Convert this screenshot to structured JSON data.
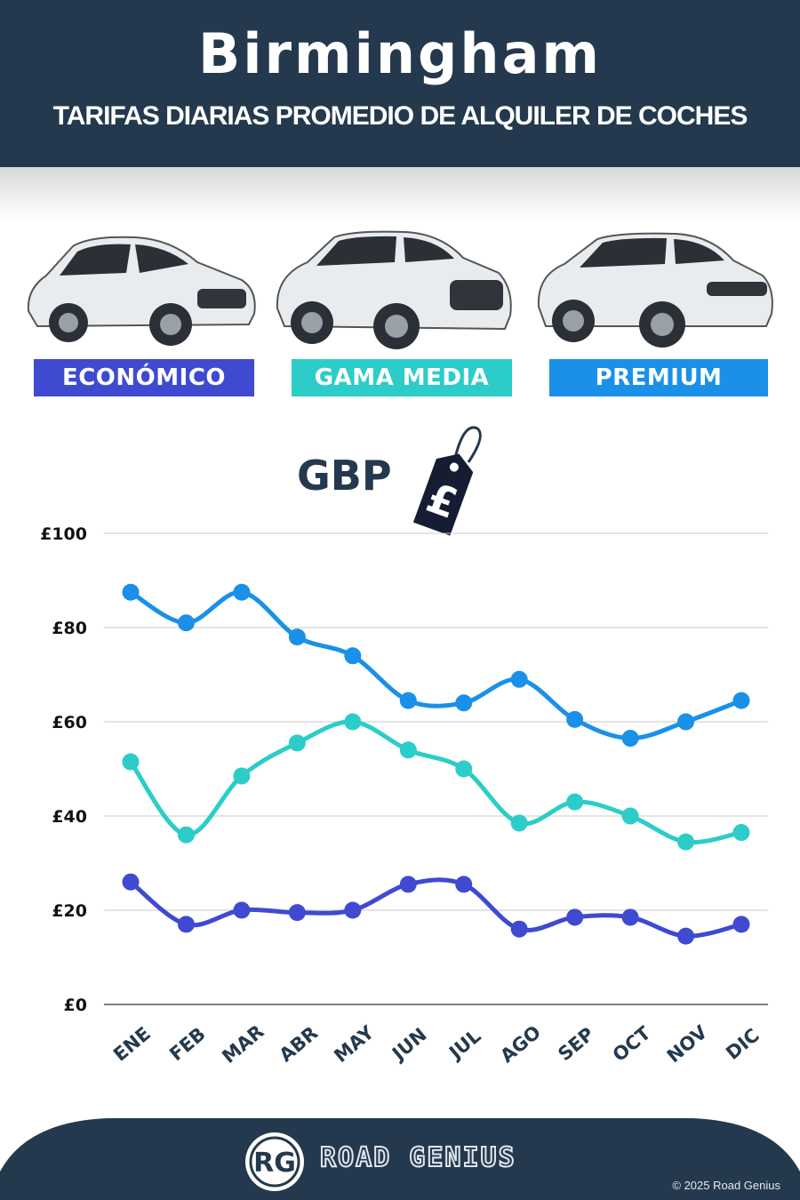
{
  "header": {
    "title": "Birmingham",
    "subtitle": "TARIFAS DIARIAS PROMEDIO DE ALQUILER DE COCHES"
  },
  "categories": [
    {
      "label": "ECONÓMICO",
      "color": "#3f4ad1"
    },
    {
      "label": "GAMA MEDIA",
      "color": "#2ccdc8"
    },
    {
      "label": "PREMIUM",
      "color": "#1a90e8"
    }
  ],
  "currency": {
    "label": "GBP",
    "symbol": "£"
  },
  "chart_data": {
    "type": "line",
    "categories": [
      "ENE",
      "FEB",
      "MAR",
      "ABR",
      "MAY",
      "JUN",
      "JUL",
      "AGO",
      "SEP",
      "OCT",
      "NOV",
      "DIC"
    ],
    "series": [
      {
        "name": "PREMIUM",
        "color": "#1a90e8",
        "values": [
          87.5,
          81,
          87.5,
          78,
          74,
          64.5,
          64,
          69,
          60.5,
          56.5,
          60,
          64.5
        ]
      },
      {
        "name": "GAMA MEDIA",
        "color": "#2ccdc8",
        "values": [
          51.5,
          36,
          48.5,
          55.5,
          60,
          54,
          50,
          38.5,
          43,
          40,
          34.5,
          36.5
        ]
      },
      {
        "name": "ECONÓMICO",
        "color": "#3f4ad1",
        "values": [
          26,
          17,
          20,
          19.5,
          20,
          25.5,
          25.5,
          16,
          18.5,
          18.5,
          14.5,
          17
        ]
      }
    ],
    "y_ticks": [
      "£0",
      "£20",
      "£40",
      "£60",
      "£80",
      "£100"
    ],
    "ylim": [
      0,
      100
    ],
    "grid": true,
    "legend": "above chart"
  },
  "footer": {
    "logo_text": "RG",
    "brand": "ROAD GENIUS",
    "copyright": "© 2025 Road Genius"
  }
}
